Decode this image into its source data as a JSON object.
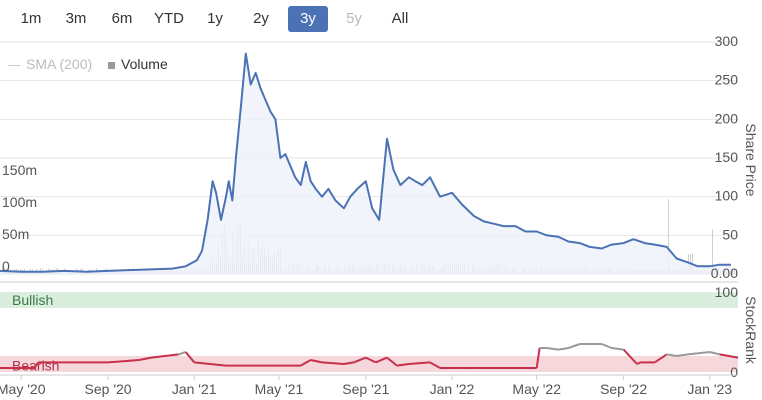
{
  "range_selector": {
    "buttons": [
      {
        "label": "1m",
        "state": "normal"
      },
      {
        "label": "3m",
        "state": "normal"
      },
      {
        "label": "6m",
        "state": "normal"
      },
      {
        "label": "YTD",
        "state": "normal"
      },
      {
        "label": "1y",
        "state": "normal"
      },
      {
        "label": "2y",
        "state": "normal"
      },
      {
        "label": "3y",
        "state": "active"
      },
      {
        "label": "5y",
        "state": "disabled"
      },
      {
        "label": "All",
        "state": "normal"
      }
    ]
  },
  "legend": {
    "sma_label": "SMA (200)",
    "volume_label": "Volume"
  },
  "colors": {
    "price_line": "#4a72b5",
    "price_fill": "#eef2fa",
    "volume_bars": "#cfcfcf",
    "bullish_band": "#d9eedd",
    "bearish_band": "#f6d8dc",
    "rank_bear": "#c8304a",
    "rank_bull": "#999999",
    "active_button": "#4a72b5"
  },
  "chart_data": [
    {
      "type": "line",
      "series": [
        {
          "name": "",
          "values_note_hidden": null,
          "x": [
            "2020-04-01",
            "2020-05-01",
            "2020-06-01",
            "2020-07-01",
            "2020-08-01",
            "2020-09-01",
            "2020-10-01",
            "2020-11-01",
            "2020-12-01",
            "2020-12-20",
            "2021-01-05",
            "2021-01-12",
            "2021-01-20",
            "2021-01-27",
            "2021-02-01",
            "2021-02-08",
            "2021-02-15",
            "2021-02-19",
            "2021-02-24",
            "2021-03-01",
            "2021-03-08",
            "2021-03-15",
            "2021-03-22",
            "2021-03-29",
            "2021-04-05",
            "2021-04-12",
            "2021-04-19",
            "2021-04-26",
            "2021-05-03",
            "2021-05-10",
            "2021-05-17",
            "2021-05-24",
            "2021-06-01",
            "2021-06-08",
            "2021-06-15",
            "2021-06-22",
            "2021-07-01",
            "2021-07-10",
            "2021-07-20",
            "2021-08-01",
            "2021-08-10",
            "2021-08-20",
            "2021-09-01",
            "2021-09-10",
            "2021-09-20",
            "2021-10-01",
            "2021-10-10",
            "2021-10-20",
            "2021-11-01",
            "2021-11-10",
            "2021-11-20",
            "2021-12-01",
            "2021-12-15",
            "2022-01-01",
            "2022-01-15",
            "2022-02-01",
            "2022-02-15",
            "2022-03-01",
            "2022-03-15",
            "2022-04-01",
            "2022-04-15",
            "2022-05-01",
            "2022-05-15",
            "2022-06-01",
            "2022-06-15",
            "2022-07-01",
            "2022-07-15",
            "2022-08-01",
            "2022-08-15",
            "2022-09-01",
            "2022-09-15",
            "2022-10-01",
            "2022-10-15",
            "2022-11-01",
            "2022-11-15",
            "2022-12-01",
            "2022-12-15",
            "2023-01-01",
            "2023-01-15",
            "2023-01-31"
          ],
          "values": [
            4,
            3,
            3,
            4,
            3,
            4,
            5,
            6,
            7,
            10,
            18,
            30,
            70,
            120,
            105,
            70,
            100,
            120,
            95,
            150,
            215,
            285,
            245,
            260,
            240,
            225,
            210,
            200,
            150,
            155,
            140,
            125,
            115,
            145,
            120,
            110,
            100,
            110,
            95,
            85,
            100,
            110,
            120,
            85,
            70,
            175,
            135,
            115,
            125,
            120,
            115,
            125,
            100,
            105,
            90,
            75,
            68,
            65,
            62,
            62,
            55,
            55,
            50,
            48,
            42,
            40,
            35,
            33,
            38,
            40,
            45,
            40,
            38,
            35,
            20,
            15,
            10,
            10,
            12,
            12
          ]
        }
      ],
      "ylabel": "Share Price",
      "ylim": [
        0,
        300
      ],
      "yticks": [
        "300",
        "250",
        "200",
        "150",
        "100",
        "50",
        "0.00"
      ],
      "volume_ticks": [
        "150m",
        "100m",
        "50m",
        "0"
      ],
      "xticks": [
        "May '20",
        "Sep '20",
        "Jan '21",
        "May '21",
        "Sep '21",
        "Jan '22",
        "May '22",
        "Sep '22",
        "Jan '23"
      ],
      "xlim": [
        "2020-04-01",
        "2023-02-10"
      ]
    },
    {
      "type": "line",
      "ylabel": "StockRank",
      "yticks": [
        "100",
        "0"
      ],
      "bands": [
        "Bullish",
        "Bearish"
      ],
      "series": [
        {
          "name": "",
          "x": [
            "2020-04-01",
            "2020-05-20",
            "2020-05-25",
            "2020-09-01",
            "2020-10-15",
            "2020-11-01",
            "2020-12-10",
            "2020-12-20",
            "2021-01-01",
            "2021-02-15",
            "2021-06-01",
            "2021-06-15",
            "2021-07-01",
            "2021-08-01",
            "2021-08-15",
            "2021-09-01",
            "2021-09-15",
            "2021-10-01",
            "2021-10-15",
            "2021-11-01",
            "2021-12-01",
            "2021-12-05",
            "2021-12-15",
            "2022-01-15",
            "2022-02-01",
            "2022-04-01",
            "2022-05-01",
            "2022-05-05",
            "2022-05-15",
            "2022-06-01",
            "2022-06-15",
            "2022-07-01",
            "2022-08-01",
            "2022-08-15",
            "2022-09-01",
            "2022-09-20",
            "2022-09-25",
            "2022-10-15",
            "2022-11-01",
            "2022-11-15",
            "2022-12-01",
            "2023-01-01",
            "2023-01-15",
            "2023-02-10"
          ],
          "values": [
            5,
            5,
            12,
            12,
            15,
            18,
            22,
            25,
            12,
            8,
            8,
            15,
            12,
            10,
            12,
            18,
            12,
            18,
            8,
            10,
            12,
            10,
            5,
            5,
            5,
            5,
            5,
            30,
            30,
            28,
            30,
            35,
            35,
            30,
            28,
            10,
            12,
            12,
            22,
            20,
            22,
            25,
            22,
            18
          ]
        }
      ]
    }
  ]
}
